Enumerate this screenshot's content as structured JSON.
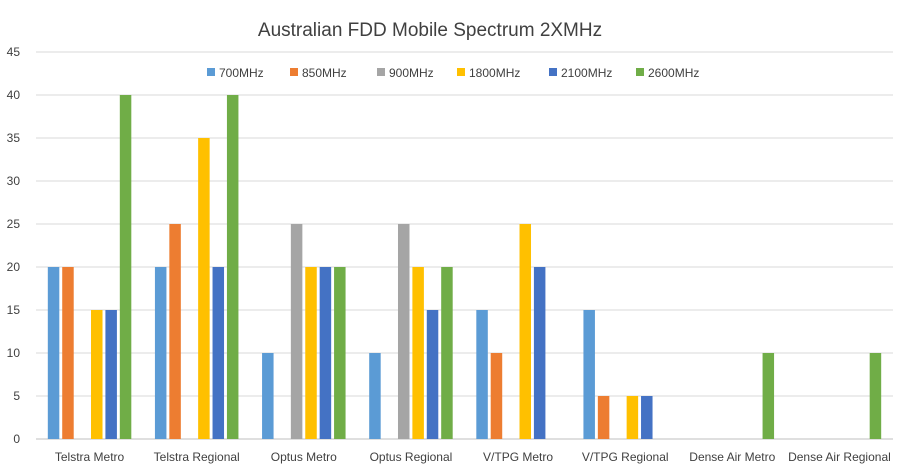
{
  "chart_data": {
    "type": "bar",
    "title": "Australian FDD Mobile Spectrum 2XMHz",
    "xlabel": "",
    "ylabel": "",
    "ylim": [
      0,
      45
    ],
    "yticks": [
      0,
      5,
      10,
      15,
      20,
      25,
      30,
      35,
      40,
      45
    ],
    "grid": true,
    "legend_position": "top",
    "categories": [
      "Telstra Metro",
      "Telstra Regional",
      "Optus Metro",
      "Optus Regional",
      "V/TPG Metro",
      "V/TPG Regional",
      "Dense Air Metro",
      "Dense Air Regional"
    ],
    "series": [
      {
        "name": "700MHz",
        "color": "#5b9bd5",
        "values": [
          20,
          20,
          10,
          10,
          15,
          15,
          0,
          0
        ]
      },
      {
        "name": "850MHz",
        "color": "#ed7d31",
        "values": [
          20,
          25,
          0,
          0,
          10,
          5,
          0,
          0
        ]
      },
      {
        "name": "900MHz",
        "color": "#a5a5a5",
        "values": [
          0,
          0,
          25,
          25,
          0,
          0,
          0,
          0
        ]
      },
      {
        "name": "1800MHz",
        "color": "#ffc000",
        "values": [
          15,
          35,
          20,
          20,
          25,
          5,
          0,
          0
        ]
      },
      {
        "name": "2100MHz",
        "color": "#4472c4",
        "values": [
          15,
          20,
          20,
          15,
          20,
          5,
          0,
          0
        ]
      },
      {
        "name": "2600MHz",
        "color": "#70ad47",
        "values": [
          40,
          40,
          20,
          20,
          0,
          0,
          10,
          10
        ]
      }
    ]
  }
}
